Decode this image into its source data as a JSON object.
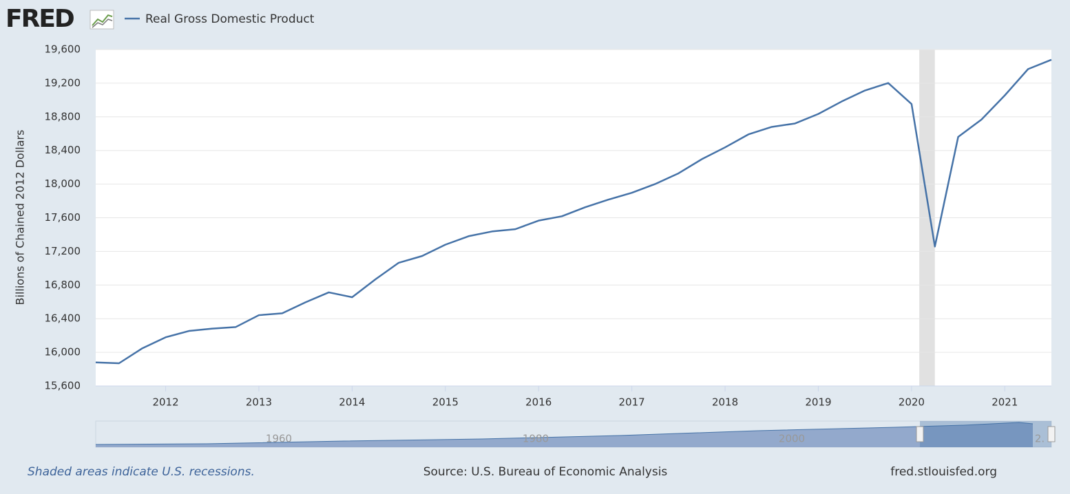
{
  "chart_data": {
    "type": "line",
    "logo": "FRED",
    "ylabel": "Billions of Chained 2012 Dollars",
    "note": "Shaded areas indicate U.S. recessions.",
    "source": "Source: U.S. Bureau of Economic Analysis",
    "site": "fred.stlouisfed.org",
    "x": [
      2011.25,
      2011.5,
      2011.75,
      2012,
      2012.25,
      2012.5,
      2012.75,
      2013,
      2013.25,
      2013.5,
      2013.75,
      2014,
      2014.25,
      2014.5,
      2014.75,
      2015,
      2015.25,
      2015.5,
      2015.75,
      2016,
      2016.25,
      2016.5,
      2016.75,
      2017,
      2017.25,
      2017.5,
      2017.75,
      2018,
      2018.25,
      2018.5,
      2018.75,
      2019,
      2019.25,
      2019.5,
      2019.75,
      2020,
      2020.25,
      2020.5,
      2020.75,
      2021,
      2021.25,
      2021.5
    ],
    "series": [
      {
        "name": "Real Gross Domestic Product",
        "color": "#4572a7",
        "values": [
          15880,
          15870,
          16048,
          16179,
          16254,
          16282,
          16300,
          16442,
          16464,
          16595,
          16713,
          16655,
          16868,
          17065,
          17145,
          17280,
          17381,
          17437,
          17464,
          17566,
          17618,
          17725,
          17816,
          17897,
          18001,
          18128,
          18296,
          18437,
          18591,
          18680,
          18721,
          18834,
          18982,
          19113,
          19202,
          18952,
          17258,
          18561,
          18768,
          19055,
          19368,
          19479
        ]
      }
    ],
    "recessions": [
      [
        2020.083,
        2020.25
      ]
    ],
    "xlim": [
      2011.25,
      2021.5
    ],
    "xticks": [
      2012,
      2013,
      2014,
      2015,
      2016,
      2017,
      2018,
      2019,
      2020,
      2021
    ],
    "ylim": [
      15600,
      19600
    ],
    "yticks": [
      {
        "value": 15600,
        "label": "15,600"
      },
      {
        "value": 16000,
        "label": "16,000"
      },
      {
        "value": 16400,
        "label": "16,400"
      },
      {
        "value": 16800,
        "label": "16,800"
      },
      {
        "value": 17200,
        "label": "17,200"
      },
      {
        "value": 17600,
        "label": "17,600"
      },
      {
        "value": 18000,
        "label": "18,000"
      },
      {
        "value": 18400,
        "label": "18,400"
      },
      {
        "value": 18800,
        "label": "18,800"
      },
      {
        "value": 19200,
        "label": "19,200"
      },
      {
        "value": 19600,
        "label": "19,600"
      }
    ],
    "grid": true,
    "navigator_labels": [
      "1960",
      "1980",
      "2000",
      "2."
    ]
  }
}
